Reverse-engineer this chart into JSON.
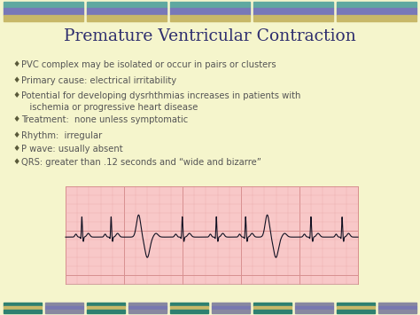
{
  "title": "Premature Ventricular Contraction",
  "title_color": "#2e2e6e",
  "title_fontsize": 13.5,
  "bg_color": "#f5f5cc",
  "bullet_color": "#555555",
  "bullet_fontsize": 7.2,
  "bullets": [
    "PVC complex may be isolated or occur in pairs or clusters",
    "Primary cause: electrical irritability",
    "Potential for developing dysrhthmias increases in patients with\n   ischemia or progressive heart disease",
    "Treatment:  none unless symptomatic",
    "Rhythm:  irregular",
    "P wave: usually absent",
    "QRS: greater than .12 seconds and “wide and bizarre”"
  ],
  "header_colors": [
    "#5fa8a0",
    "#7878b8",
    "#c8b868"
  ],
  "footer_colors": [
    "#2e8878",
    "#c8b868",
    "#9898b0",
    "#5fa8a0"
  ],
  "ecg_bg": "#f8c8c8",
  "ecg_grid_major": "#d89090",
  "ecg_grid_minor": "#ecca",
  "ecg_line_color": "#111122"
}
